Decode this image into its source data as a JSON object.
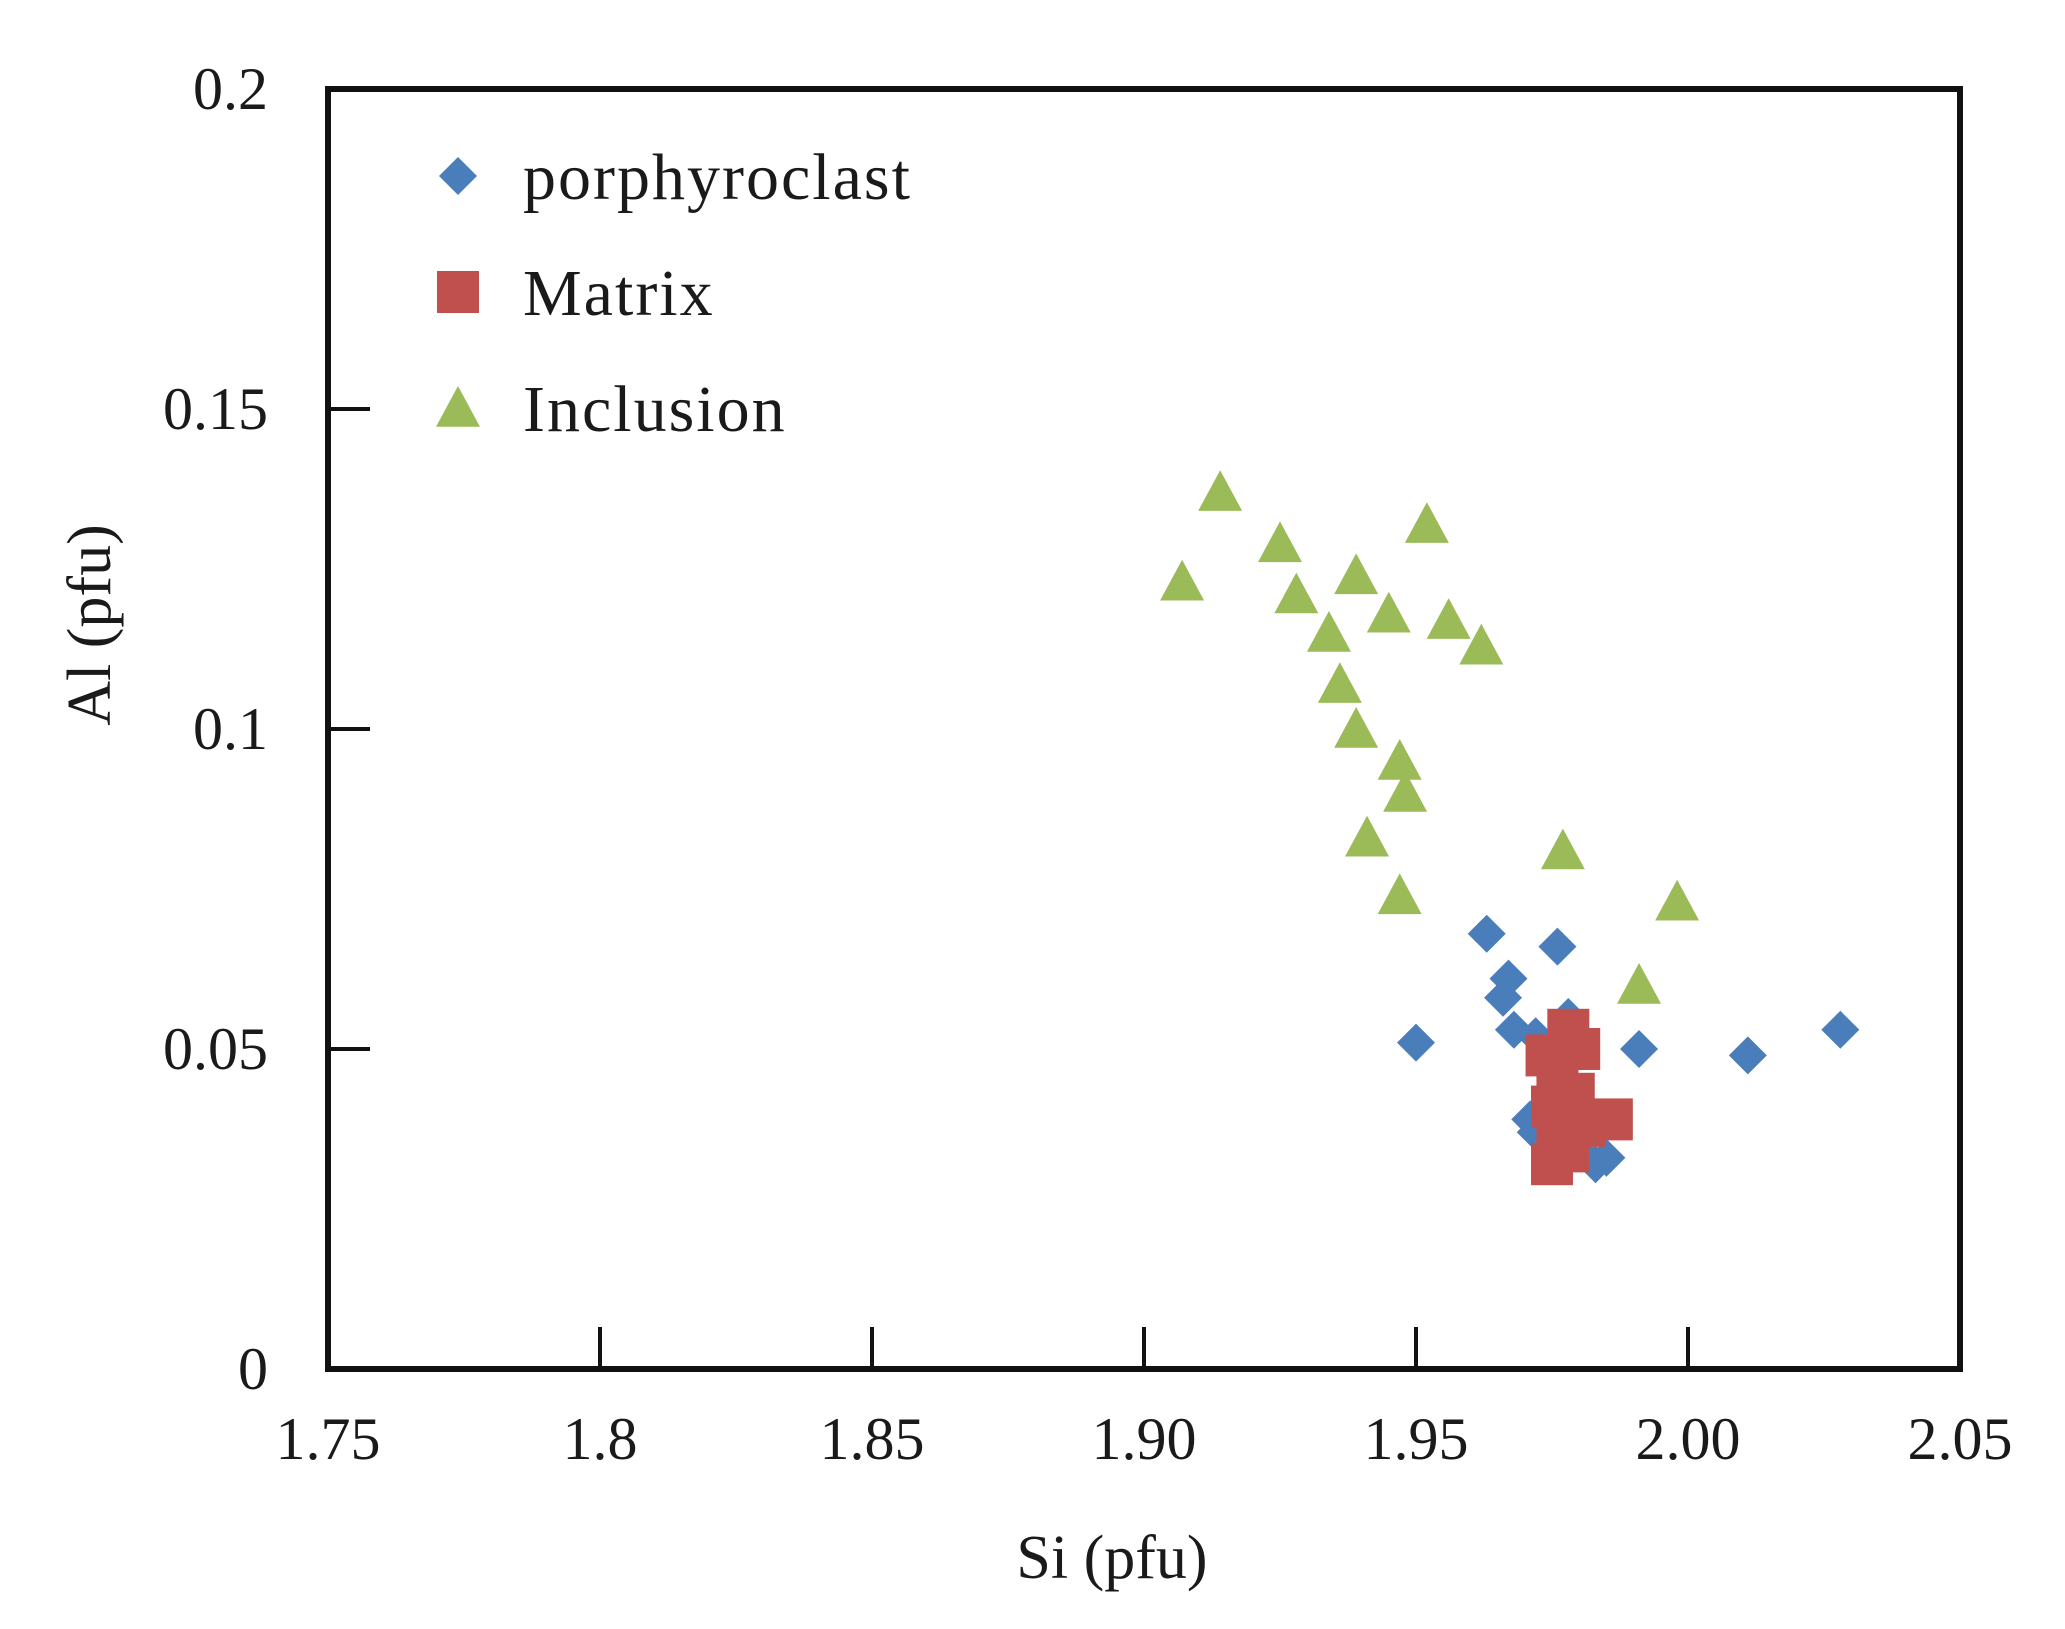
{
  "chart_data": {
    "type": "scatter",
    "title": "",
    "xlabel": "Si (pfu)",
    "ylabel": "Al (pfu)",
    "xlim": [
      1.75,
      2.05
    ],
    "ylim": [
      0,
      0.2
    ],
    "x_ticks": [
      {
        "value": 1.75,
        "label": "1.75"
      },
      {
        "value": 1.8,
        "label": "1.8"
      },
      {
        "value": 1.85,
        "label": "1.85"
      },
      {
        "value": 1.9,
        "label": "1.90"
      },
      {
        "value": 1.95,
        "label": "1.95"
      },
      {
        "value": 2.0,
        "label": "2.00"
      },
      {
        "value": 2.05,
        "label": "2.05"
      }
    ],
    "y_ticks": [
      {
        "value": 0,
        "label": "0"
      },
      {
        "value": 0.05,
        "label": "0.05"
      },
      {
        "value": 0.1,
        "label": "0.1"
      },
      {
        "value": 0.15,
        "label": "0.15"
      },
      {
        "value": 0.2,
        "label": "0.2"
      }
    ],
    "grid": false,
    "legend_position": "top-left",
    "series": [
      {
        "name": "porphyroclast",
        "marker": "diamond",
        "color": "#4a7ebb",
        "points": [
          [
            1.95,
            0.051
          ],
          [
            1.963,
            0.068
          ],
          [
            1.976,
            0.066
          ],
          [
            1.967,
            0.061
          ],
          [
            1.966,
            0.058
          ],
          [
            1.968,
            0.053
          ],
          [
            1.972,
            0.052
          ],
          [
            1.978,
            0.055
          ],
          [
            1.991,
            0.05
          ],
          [
            2.011,
            0.049
          ],
          [
            2.028,
            0.053
          ],
          [
            1.971,
            0.039
          ],
          [
            1.972,
            0.037
          ],
          [
            1.976,
            0.035
          ],
          [
            1.98,
            0.034
          ],
          [
            1.983,
            0.032
          ],
          [
            1.985,
            0.033
          ],
          [
            1.978,
            0.036
          ]
        ]
      },
      {
        "name": "Matrix",
        "marker": "square",
        "color": "#c0504d",
        "points": [
          [
            1.974,
            0.049
          ],
          [
            1.978,
            0.053
          ],
          [
            1.98,
            0.05
          ],
          [
            1.976,
            0.046
          ],
          [
            1.979,
            0.043
          ],
          [
            1.975,
            0.041
          ],
          [
            1.977,
            0.039
          ],
          [
            1.986,
            0.039
          ],
          [
            1.981,
            0.038
          ],
          [
            1.976,
            0.035
          ],
          [
            1.975,
            0.032
          ],
          [
            1.978,
            0.034
          ]
        ]
      },
      {
        "name": "Inclusion",
        "marker": "triangle",
        "color": "#9bbb59",
        "points": [
          [
            1.914,
            0.137
          ],
          [
            1.907,
            0.123
          ],
          [
            1.925,
            0.129
          ],
          [
            1.928,
            0.121
          ],
          [
            1.939,
            0.124
          ],
          [
            1.952,
            0.132
          ],
          [
            1.945,
            0.118
          ],
          [
            1.956,
            0.117
          ],
          [
            1.962,
            0.113
          ],
          [
            1.934,
            0.115
          ],
          [
            1.936,
            0.107
          ],
          [
            1.939,
            0.1
          ],
          [
            1.947,
            0.095
          ],
          [
            1.948,
            0.09
          ],
          [
            1.941,
            0.083
          ],
          [
            1.947,
            0.074
          ],
          [
            1.977,
            0.081
          ],
          [
            1.998,
            0.073
          ],
          [
            1.991,
            0.06
          ]
        ]
      }
    ]
  }
}
